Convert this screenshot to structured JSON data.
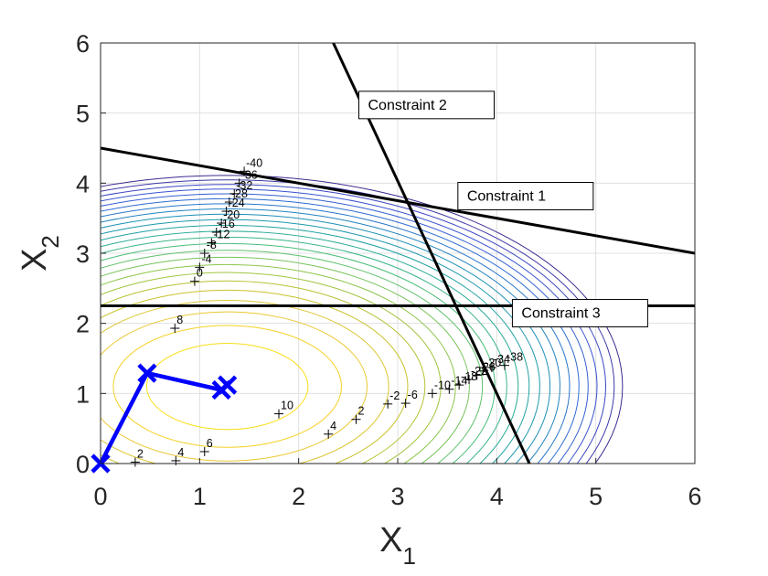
{
  "chart_data": {
    "type": "contour",
    "xlim": [
      0,
      6
    ],
    "ylim": [
      0,
      6
    ],
    "x_ticks": [
      "0",
      "1",
      "2",
      "3",
      "4",
      "5",
      "6"
    ],
    "y_ticks": [
      "0",
      "1",
      "2",
      "3",
      "4",
      "5",
      "6"
    ],
    "xlabel": {
      "base": "X",
      "sub": "1"
    },
    "ylabel": {
      "base": "X",
      "sub": "2"
    },
    "grid": true,
    "contours": {
      "center": [
        1.28,
        1.1
      ],
      "semi_axis_x_outer": 3.99,
      "semi_axis_y_outer": 3.01,
      "levels": 24
    },
    "constraints": [
      {
        "name": "Constraint 1",
        "points": [
          [
            0,
            4.5
          ],
          [
            6,
            3.0
          ]
        ]
      },
      {
        "name": "Constraint 2",
        "points": [
          [
            2.35,
            6.0
          ],
          [
            4.33,
            0.0
          ]
        ]
      },
      {
        "name": "Constraint 3",
        "points": [
          [
            0,
            2.25
          ],
          [
            6,
            2.25
          ]
        ]
      }
    ],
    "path": {
      "points": [
        [
          0,
          0
        ],
        [
          0.47,
          1.29
        ],
        [
          1.22,
          1.05
        ],
        [
          1.28,
          1.12
        ]
      ],
      "color": "#0000ff"
    },
    "labeled_points": [
      {
        "x": 0.35,
        "y": 0.02,
        "label": "2"
      },
      {
        "x": 0.76,
        "y": 0.04,
        "label": "4"
      },
      {
        "x": 1.05,
        "y": 0.17,
        "label": "6"
      },
      {
        "x": 1.8,
        "y": 0.71,
        "label": "10"
      },
      {
        "x": 2.3,
        "y": 0.42,
        "label": "4"
      },
      {
        "x": 2.58,
        "y": 0.63,
        "label": "2"
      },
      {
        "x": 2.9,
        "y": 0.85,
        "label": "-2"
      },
      {
        "x": 3.08,
        "y": 0.86,
        "label": "-6"
      },
      {
        "x": 3.35,
        "y": 1.0,
        "label": "-10"
      },
      {
        "x": 3.52,
        "y": 1.06,
        "label": "-14"
      },
      {
        "x": 3.62,
        "y": 1.12,
        "label": "-18"
      },
      {
        "x": 3.72,
        "y": 1.2,
        "label": "-22"
      },
      {
        "x": 3.8,
        "y": 1.26,
        "label": "-26"
      },
      {
        "x": 3.86,
        "y": 1.32,
        "label": "-30"
      },
      {
        "x": 3.95,
        "y": 1.37,
        "label": "-34"
      },
      {
        "x": 4.08,
        "y": 1.4,
        "label": "-38"
      },
      {
        "x": 0.75,
        "y": 1.93,
        "label": "8"
      },
      {
        "x": 0.95,
        "y": 2.6,
        "label": "0"
      },
      {
        "x": 1.0,
        "y": 2.8,
        "label": "-4"
      },
      {
        "x": 1.05,
        "y": 3.0,
        "label": "-8"
      },
      {
        "x": 1.12,
        "y": 3.15,
        "label": "-12"
      },
      {
        "x": 1.17,
        "y": 3.3,
        "label": "-16"
      },
      {
        "x": 1.22,
        "y": 3.43,
        "label": "-20"
      },
      {
        "x": 1.27,
        "y": 3.6,
        "label": "-24"
      },
      {
        "x": 1.3,
        "y": 3.73,
        "label": "-28"
      },
      {
        "x": 1.35,
        "y": 3.85,
        "label": "-32"
      },
      {
        "x": 1.4,
        "y": 4.0,
        "label": "-36"
      },
      {
        "x": 1.45,
        "y": 4.17,
        "label": "-40"
      }
    ],
    "annotations": [
      {
        "text": "Constraint 1",
        "x": 3.7,
        "y": 3.75
      },
      {
        "text": "Constraint 2",
        "x": 2.7,
        "y": 5.05
      },
      {
        "text": "Constraint 3",
        "x": 4.25,
        "y": 2.08
      }
    ]
  },
  "colors": {
    "contour_ramp": [
      "#ffea00",
      "#f2c833",
      "#c3c12a",
      "#8dc64b",
      "#4fbf74",
      "#22a89a",
      "#1c8fb6",
      "#2c6fd1",
      "#3b4fcf",
      "#3e2a91"
    ],
    "constraint_line": "#000000",
    "grid": "#e0e0e0"
  }
}
